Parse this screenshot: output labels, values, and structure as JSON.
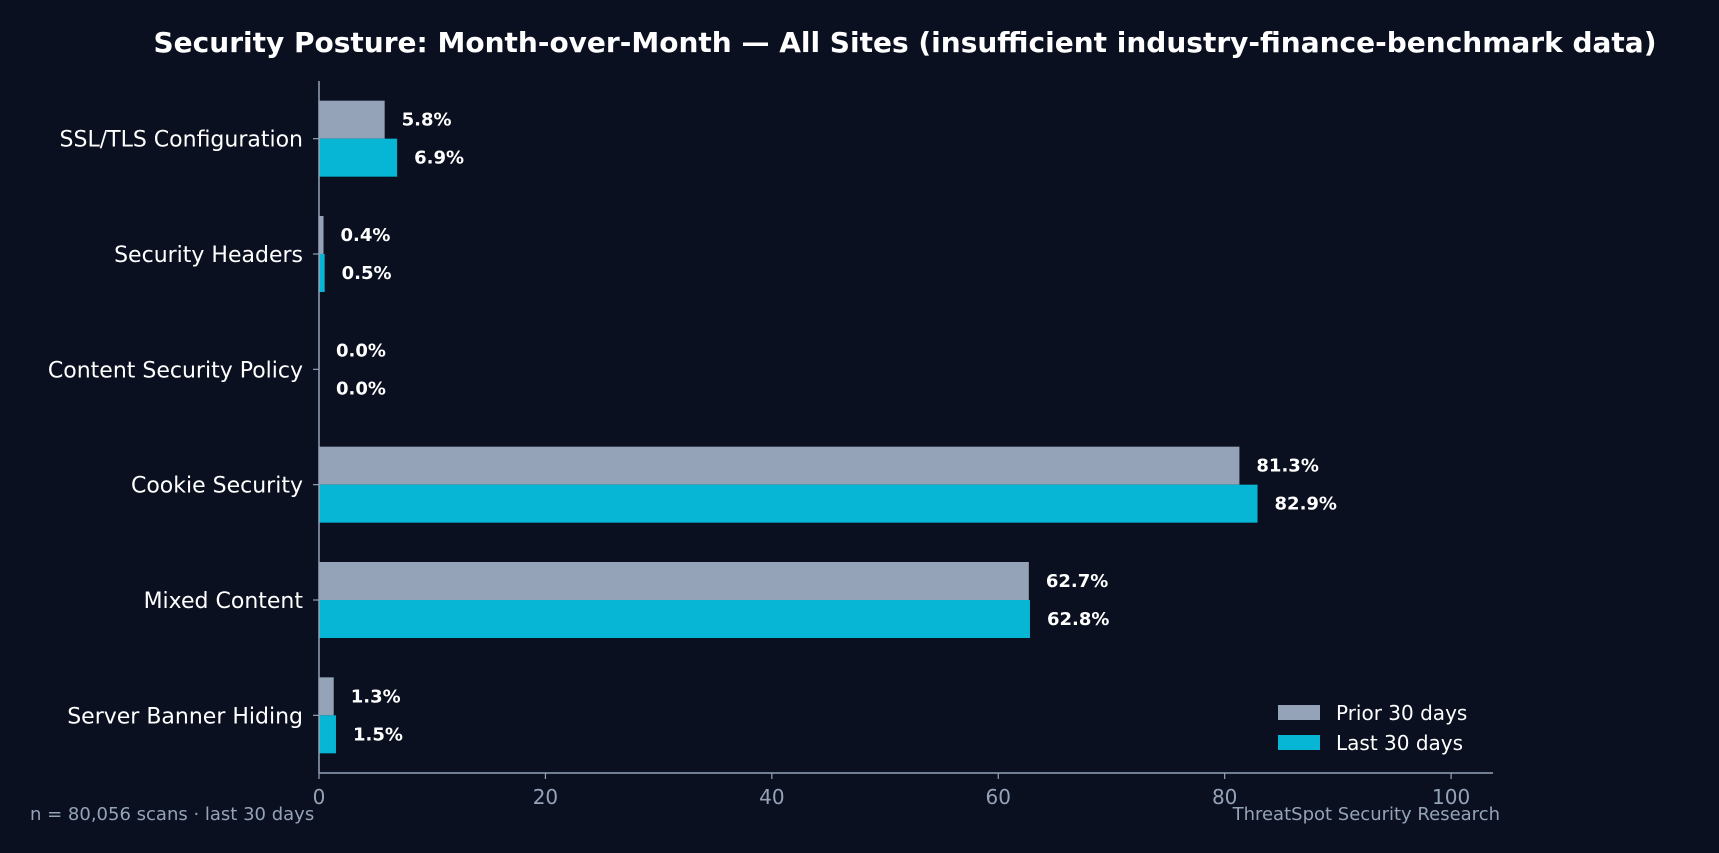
{
  "chart_data": {
    "type": "bar",
    "orientation": "horizontal",
    "title": "Security Posture: Month-over-Month — All Sites (insufficient industry-finance-benchmark data)",
    "categories": [
      "SSL/TLS Configuration",
      "Security Headers",
      "Content Security Policy",
      "Cookie Security",
      "Mixed Content",
      "Server Banner Hiding"
    ],
    "series": [
      {
        "name": "Prior 30 days",
        "color": "#94a3b8",
        "values": [
          5.8,
          0.4,
          0.0,
          81.3,
          62.7,
          1.3
        ],
        "labels": [
          "5.8%",
          "0.4%",
          "0.0%",
          "81.3%",
          "62.7%",
          "1.3%"
        ]
      },
      {
        "name": "Last 30 days",
        "color": "#06b6d4",
        "values": [
          6.9,
          0.5,
          0.0,
          82.9,
          62.8,
          1.5
        ],
        "labels": [
          "6.9%",
          "0.5%",
          "0.0%",
          "82.9%",
          "62.8%",
          "1.5%"
        ]
      }
    ],
    "xlim": [
      0,
      103.7
    ],
    "xticks": [
      0,
      20,
      40,
      60,
      80,
      100
    ],
    "xtick_labels": [
      "0",
      "20",
      "40",
      "60",
      "80",
      "100"
    ],
    "xlabel": "",
    "ylabel": "",
    "grid": false,
    "legend_position": "bottom-right"
  },
  "footer": {
    "left": "n = 80,056 scans · last 30 days",
    "right": "ThreatSpot Security Research"
  },
  "colors": {
    "background": "#0b1020",
    "axis": "#94a3b8",
    "text": "#ffffff",
    "muted_text": "#94a3b8"
  }
}
